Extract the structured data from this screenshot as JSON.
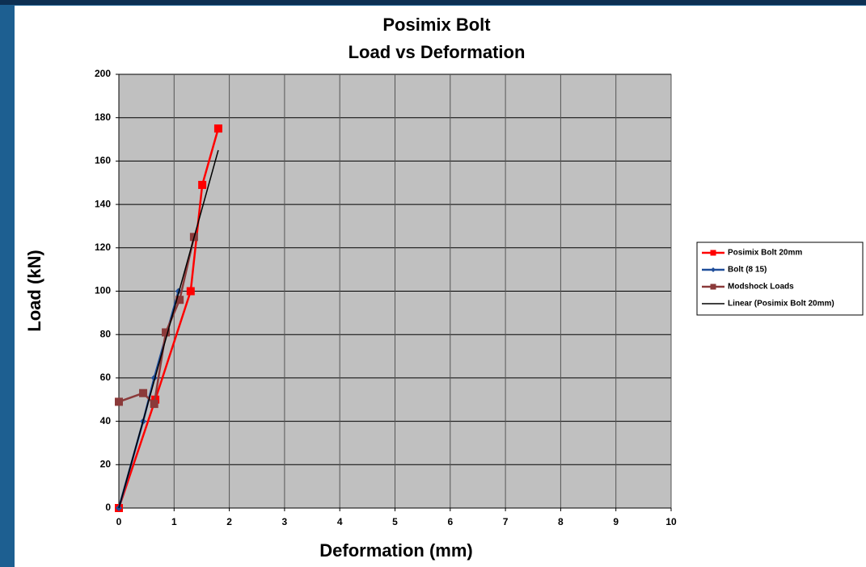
{
  "chart_data": {
    "type": "line",
    "title": "Posimix Bolt",
    "subtitle": "Load vs Deformation",
    "x_label": "Deformation (mm)",
    "y_label": "Load (kN)",
    "xlim": [
      0,
      10
    ],
    "xticks": [
      0,
      1,
      2,
      3,
      4,
      5,
      6,
      7,
      8,
      9,
      10
    ],
    "ylim": [
      0,
      200
    ],
    "yticks": [
      0,
      20,
      40,
      60,
      80,
      100,
      120,
      140,
      160,
      180,
      200
    ],
    "grid": true,
    "legend": "right",
    "series": [
      {
        "name": "Posimix Bolt 20mm",
        "color": "#ff0000",
        "marker": "square",
        "x": [
          0,
          0.66,
          1.3,
          1.51,
          1.8
        ],
        "values": [
          0,
          50,
          100,
          149,
          175
        ]
      },
      {
        "name": "Bolt (8 15)",
        "color": "#1f4e9a",
        "marker": "diamond",
        "x": [
          0,
          0.44,
          0.64,
          1.08
        ],
        "values": [
          0,
          40,
          60,
          100
        ]
      },
      {
        "name": "Modshock Loads",
        "color": "#8b3a3a",
        "marker": "square",
        "x": [
          0,
          0.44,
          0.64,
          0.85,
          1.1,
          1.36
        ],
        "values": [
          49,
          53,
          48,
          81,
          96,
          125
        ]
      },
      {
        "name": "Linear (Posimix Bolt 20mm)",
        "color": "#000000",
        "marker": "none",
        "x": [
          0,
          1.8
        ],
        "values": [
          0,
          165
        ]
      }
    ]
  }
}
